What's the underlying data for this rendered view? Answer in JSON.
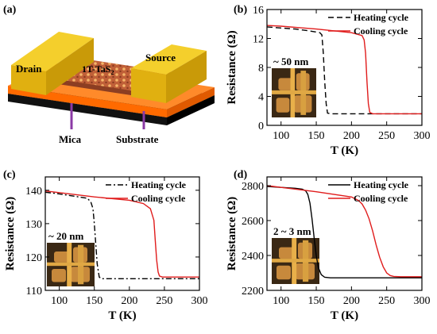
{
  "panels": [
    {
      "label": "(a)",
      "type": "device-schematic",
      "labels": {
        "drain": "Drain",
        "source": "Source",
        "material": "1T-TaS",
        "material_sub": "2",
        "mica": "Mica",
        "substrate": "Substrate"
      },
      "colors": {
        "electrode": "#f2c21a",
        "crystal": "#c8673e",
        "mica": "#ff7a1a",
        "substrate": "#111111",
        "pointer": "#8b3aa5"
      }
    }
  ],
  "chart_data": [
    {
      "panel": "(b)",
      "type": "line",
      "xlabel": "T (K)",
      "ylabel": "Resistance (Ω)",
      "xlim": [
        80,
        300
      ],
      "ylim": [
        0,
        16
      ],
      "xticks": [
        100,
        150,
        200,
        250,
        300
      ],
      "yticks": [
        0,
        4,
        8,
        12,
        16
      ],
      "legend_position": "top-right",
      "inset_label": "~ 50 nm",
      "series": [
        {
          "name": "Heating cycle",
          "color": "#000000",
          "dash": "dashed",
          "x": [
            80,
            100,
            120,
            140,
            155,
            158,
            160,
            162,
            164,
            166,
            170,
            200,
            250,
            300
          ],
          "y": [
            13.6,
            13.45,
            13.3,
            13.05,
            12.8,
            12.5,
            10,
            6,
            3,
            1.7,
            1.6,
            1.6,
            1.6,
            1.6
          ]
        },
        {
          "name": "Cooling cycle",
          "color": "#e01c1c",
          "dash": "solid",
          "x": [
            80,
            100,
            150,
            200,
            215,
            218,
            220,
            222,
            224,
            226,
            230,
            250,
            300
          ],
          "y": [
            13.8,
            13.7,
            13.3,
            12.8,
            12.4,
            11.8,
            10,
            6,
            3,
            1.8,
            1.6,
            1.6,
            1.6
          ]
        }
      ]
    },
    {
      "panel": "(c)",
      "type": "line",
      "xlabel": "T (K)",
      "ylabel": "Resistance (Ω)",
      "xlim": [
        80,
        300
      ],
      "ylim": [
        110,
        144
      ],
      "xticks": [
        100,
        150,
        200,
        250,
        300
      ],
      "yticks": [
        110,
        120,
        130,
        140
      ],
      "legend_position": "top-right",
      "inset_label": "~ 20 nm",
      "series": [
        {
          "name": "Heating cycle",
          "color": "#000000",
          "dash": "dashdot",
          "x": [
            80,
            100,
            140,
            145,
            148,
            150,
            152,
            154,
            157,
            160,
            200,
            250,
            300
          ],
          "y": [
            139.4,
            138.9,
            137.6,
            136.5,
            134.5,
            130,
            124,
            118,
            114,
            113.5,
            113.5,
            113.5,
            113.5
          ]
        },
        {
          "name": "Cooling cycle",
          "color": "#e01c1c",
          "dash": "solid",
          "x": [
            80,
            100,
            150,
            200,
            220,
            230,
            235,
            237,
            239,
            241,
            243,
            247,
            260,
            300
          ],
          "y": [
            139.8,
            139.3,
            138.0,
            137.0,
            136.0,
            134.5,
            131,
            125,
            119,
            115.5,
            114.3,
            114.0,
            114.0,
            114.0
          ]
        }
      ]
    },
    {
      "panel": "(d)",
      "type": "line",
      "xlabel": "T (K)",
      "ylabel": "Resistance (Ω)",
      "xlim": [
        80,
        300
      ],
      "ylim": [
        2200,
        2850
      ],
      "xticks": [
        100,
        150,
        200,
        250,
        300
      ],
      "yticks": [
        2200,
        2400,
        2600,
        2800
      ],
      "legend_position": "top-right",
      "inset_label": "2 ~ 3 nm",
      "series": [
        {
          "name": "Heating cycle",
          "color": "#000000",
          "dash": "solid",
          "x": [
            80,
            100,
            120,
            130,
            135,
            138,
            141,
            144,
            147,
            150,
            153,
            157,
            162,
            170,
            200,
            250,
            300
          ],
          "y": [
            2795,
            2790,
            2785,
            2780,
            2770,
            2750,
            2700,
            2610,
            2500,
            2400,
            2330,
            2290,
            2275,
            2272,
            2272,
            2272,
            2272
          ]
        },
        {
          "name": "Cooling cycle",
          "color": "#e01c1c",
          "dash": "solid",
          "x": [
            80,
            100,
            150,
            200,
            210,
            215,
            220,
            225,
            230,
            235,
            240,
            245,
            250,
            255,
            260,
            270,
            300
          ],
          "y": [
            2800,
            2790,
            2765,
            2735,
            2715,
            2695,
            2660,
            2610,
            2540,
            2460,
            2390,
            2335,
            2300,
            2285,
            2280,
            2278,
            2278
          ]
        }
      ]
    }
  ]
}
